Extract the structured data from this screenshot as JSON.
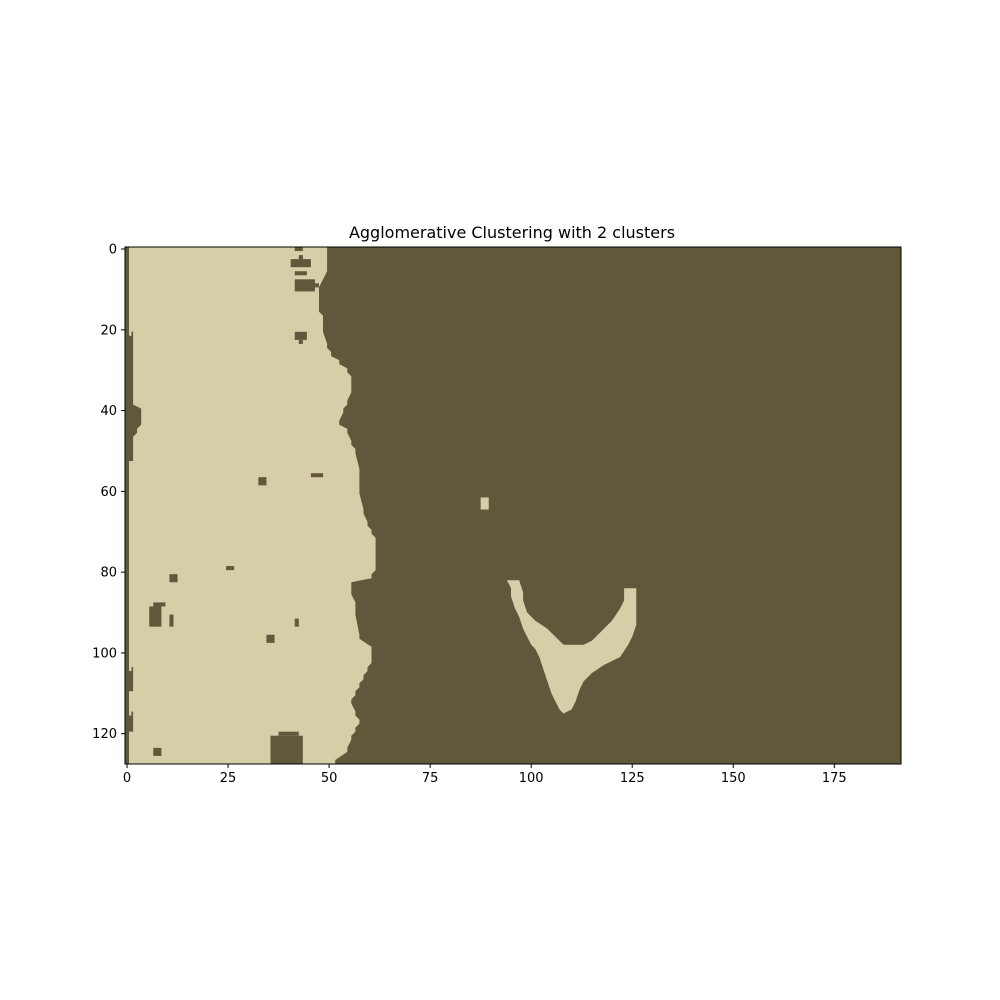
{
  "chart_data": {
    "type": "heatmap",
    "title": "Agglomerative Clustering with 2 clusters",
    "xlabel": "",
    "ylabel": "",
    "grid_width": 192,
    "grid_height": 128,
    "xlim": [
      -0.5,
      191.5
    ],
    "ylim": [
      127.5,
      -0.5
    ],
    "x_ticks": [
      0,
      25,
      50,
      75,
      100,
      125,
      150,
      175
    ],
    "y_ticks": [
      0,
      20,
      40,
      60,
      80,
      100,
      120
    ],
    "grid": false,
    "legend": "none",
    "colors": {
      "background_cluster": "#61573a",
      "light_cluster": "#d6cda9"
    },
    "light_left_region_right_edge": [
      [
        0,
        49
      ],
      [
        5,
        49
      ],
      [
        10,
        47
      ],
      [
        15,
        47
      ],
      [
        17,
        48
      ],
      [
        20,
        48
      ],
      [
        24,
        49
      ],
      [
        26,
        50
      ],
      [
        28,
        52
      ],
      [
        30,
        54
      ],
      [
        32,
        55
      ],
      [
        35,
        55
      ],
      [
        38,
        54
      ],
      [
        40,
        53
      ],
      [
        43,
        52
      ],
      [
        45,
        54
      ],
      [
        48,
        55
      ],
      [
        50,
        56
      ],
      [
        55,
        57
      ],
      [
        60,
        57
      ],
      [
        65,
        58
      ],
      [
        68,
        59
      ],
      [
        70,
        60
      ],
      [
        72,
        61
      ],
      [
        79,
        61
      ],
      [
        81,
        60
      ],
      [
        83,
        55
      ],
      [
        85,
        55
      ],
      [
        88,
        56
      ],
      [
        90,
        56
      ],
      [
        96,
        57
      ],
      [
        99,
        60
      ],
      [
        102,
        60
      ],
      [
        104,
        59
      ],
      [
        106,
        58
      ],
      [
        108,
        57
      ],
      [
        110,
        56
      ],
      [
        112,
        55
      ],
      [
        115,
        56
      ],
      [
        117,
        57
      ],
      [
        119,
        56
      ],
      [
        121,
        55
      ],
      [
        124,
        54
      ],
      [
        127,
        51
      ]
    ],
    "left_dark_border": [
      [
        0,
        0
      ],
      [
        20,
        0
      ],
      [
        21,
        1
      ],
      [
        38,
        1
      ],
      [
        40,
        3
      ],
      [
        43,
        3
      ],
      [
        45,
        2
      ],
      [
        47,
        1
      ],
      [
        52,
        1
      ],
      [
        53,
        0
      ],
      [
        103,
        0
      ],
      [
        104,
        1
      ],
      [
        109,
        1
      ],
      [
        110,
        0
      ],
      [
        114,
        0
      ],
      [
        115,
        1
      ],
      [
        119,
        1
      ],
      [
        120,
        0
      ],
      [
        127,
        0
      ]
    ],
    "dark_specks_in_light_region": [
      [
        0,
        42,
        2,
        1
      ],
      [
        2,
        43,
        1,
        1
      ],
      [
        3,
        41,
        5,
        2
      ],
      [
        6,
        42,
        3,
        1
      ],
      [
        8,
        42,
        5,
        3
      ],
      [
        9,
        46,
        2,
        1
      ],
      [
        11,
        48,
        1,
        3
      ],
      [
        21,
        42,
        3,
        2
      ],
      [
        23,
        43,
        1,
        1
      ],
      [
        56,
        46,
        3,
        1
      ],
      [
        57,
        33,
        2,
        2
      ],
      [
        81,
        11,
        2,
        2
      ],
      [
        79,
        25,
        2,
        1
      ],
      [
        88,
        7,
        3,
        1
      ],
      [
        89,
        6,
        3,
        5
      ],
      [
        91,
        11,
        1,
        3
      ],
      [
        92,
        42,
        1,
        2
      ],
      [
        96,
        35,
        2,
        2
      ],
      [
        120,
        38,
        5,
        1
      ],
      [
        121,
        36,
        8,
        7
      ],
      [
        124,
        7,
        2,
        2
      ]
    ],
    "light_specks_in_dark_region": [
      [
        62,
        88,
        2,
        3
      ]
    ],
    "light_v_shape_outline": [
      [
        82,
        94
      ],
      [
        82,
        97
      ],
      [
        85,
        98
      ],
      [
        87,
        98
      ],
      [
        90,
        99
      ],
      [
        92,
        101
      ],
      [
        94,
        104
      ],
      [
        96,
        106
      ],
      [
        98,
        108
      ],
      [
        98,
        113
      ],
      [
        97,
        115
      ],
      [
        95,
        117
      ],
      [
        92,
        120
      ],
      [
        89,
        122
      ],
      [
        87,
        123
      ],
      [
        84,
        123
      ],
      [
        84,
        126
      ],
      [
        87,
        126
      ],
      [
        90,
        126
      ],
      [
        93,
        126
      ],
      [
        96,
        125
      ],
      [
        98,
        124
      ],
      [
        101,
        122
      ],
      [
        103,
        118
      ],
      [
        105,
        115
      ],
      [
        107,
        113
      ],
      [
        109,
        112
      ],
      [
        112,
        111
      ],
      [
        114,
        110
      ],
      [
        115,
        108
      ],
      [
        114,
        107
      ],
      [
        112,
        106
      ],
      [
        110,
        105
      ],
      [
        107,
        104
      ],
      [
        104,
        103
      ],
      [
        101,
        102
      ],
      [
        99,
        101
      ],
      [
        98,
        100
      ],
      [
        96,
        99
      ],
      [
        94,
        98
      ],
      [
        91,
        97
      ],
      [
        89,
        96
      ],
      [
        86,
        95
      ],
      [
        84,
        95
      ]
    ]
  }
}
